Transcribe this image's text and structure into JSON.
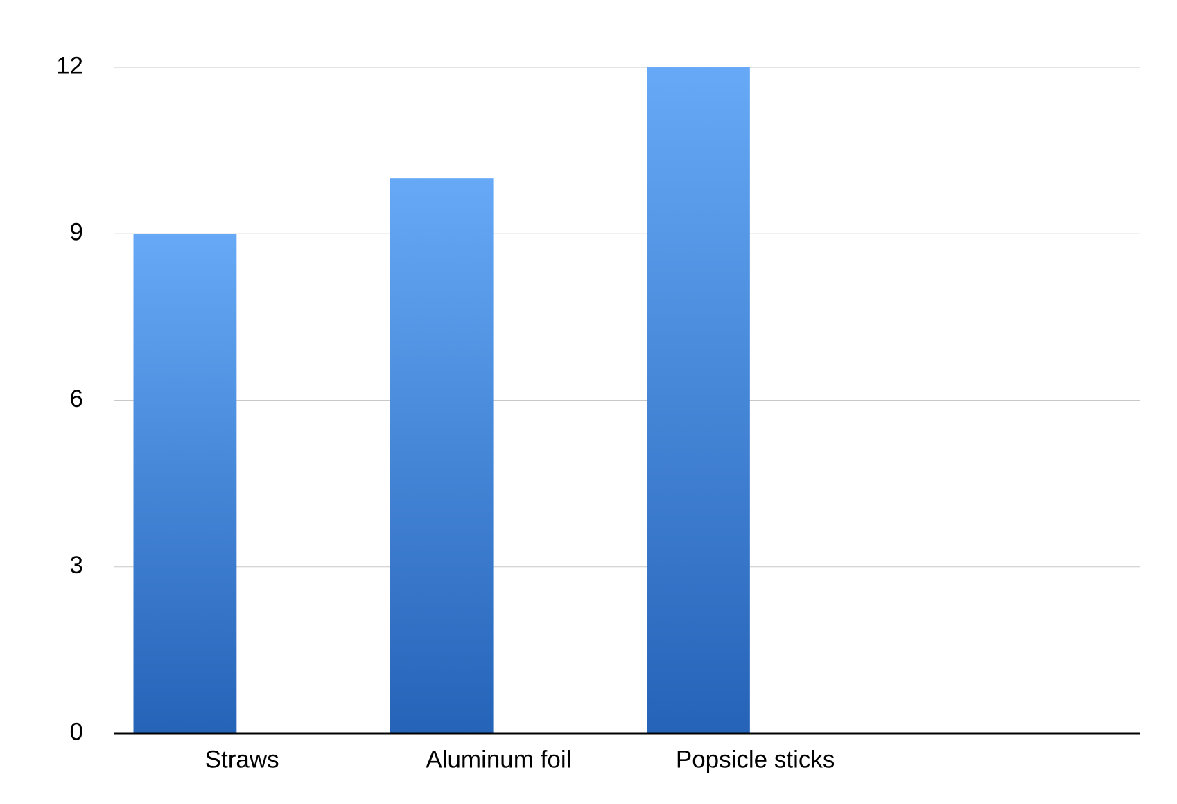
{
  "chart_data": {
    "type": "bar",
    "categories": [
      "Straws",
      "Aluminum foil",
      "Popsicle sticks",
      null
    ],
    "values": [
      9,
      10,
      12,
      null
    ],
    "color": "#2e6fc4",
    "ylim": [
      0,
      12
    ],
    "yticks": [
      0,
      3,
      6,
      9,
      12
    ],
    "grid": true
  }
}
